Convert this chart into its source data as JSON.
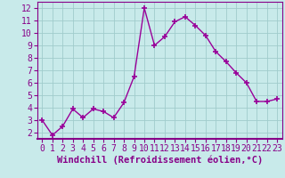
{
  "x": [
    0,
    1,
    2,
    3,
    4,
    5,
    6,
    7,
    8,
    9,
    10,
    11,
    12,
    13,
    14,
    15,
    16,
    17,
    18,
    19,
    20,
    21,
    22,
    23
  ],
  "y": [
    3.0,
    1.8,
    2.5,
    3.9,
    3.2,
    3.9,
    3.7,
    3.2,
    4.4,
    6.5,
    12.0,
    9.0,
    9.7,
    10.9,
    11.3,
    10.6,
    9.8,
    8.5,
    7.7,
    6.8,
    6.0,
    4.5,
    4.5,
    4.7
  ],
  "line_color": "#990099",
  "marker": "+",
  "marker_size": 4,
  "xlim": [
    -0.5,
    23.5
  ],
  "ylim": [
    1.5,
    12.5
  ],
  "yticks": [
    2,
    3,
    4,
    5,
    6,
    7,
    8,
    9,
    10,
    11,
    12
  ],
  "xticks": [
    0,
    1,
    2,
    3,
    4,
    5,
    6,
    7,
    8,
    9,
    10,
    11,
    12,
    13,
    14,
    15,
    16,
    17,
    18,
    19,
    20,
    21,
    22,
    23
  ],
  "xlabel": "Windchill (Refroidissement éolien,°C)",
  "background_color": "#c8eaea",
  "grid_color": "#a0cccc",
  "line_width": 1.0,
  "xlabel_fontsize": 7.5,
  "tick_fontsize": 7,
  "text_color": "#880088"
}
